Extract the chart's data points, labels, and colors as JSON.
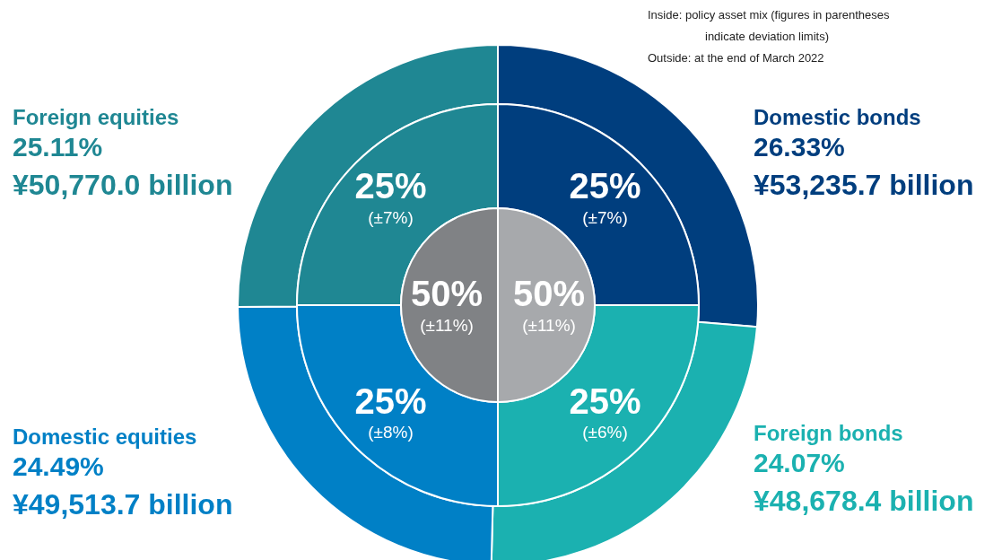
{
  "chart_data": [
    {
      "type": "donut",
      "annotations": [
        "Inside: policy asset mix (figures in parentheses\nindicate deviation limits)",
        "Outside: at the end of March 2022",
        {
          "text": "¥53,235.7 billion",
          "x": "Domestic bonds"
        },
        {
          "text": "¥48,678.4 billion",
          "x": "Foreign bonds"
        },
        {
          "text": "¥49,513.7 billion",
          "x": "Domestic equities"
        },
        {
          "text": "¥50,770.0 billion",
          "x": "Foreign equities"
        }
      ],
      "categories": [
        "Domestic bonds",
        "Foreign bonds",
        "Domestic equities",
        "Foreign equities"
      ],
      "series": [
        {
          "values": [
            26.33,
            24.07,
            24.49,
            25.11
          ],
          "colors": [
            "#003e7e",
            "#1bb1b0",
            "#0080c6",
            "#1f8793"
          ],
          "value_labels": [
            "26.33%",
            "24.07%",
            "24.49%",
            "25.11%"
          ]
        },
        {
          "values": [
            25,
            25,
            25,
            25
          ],
          "colors": [
            "#003e7e",
            "#1bb1b0",
            "#0080c6",
            "#1f8793"
          ],
          "value_labels": [
            "25%\n(±7%)",
            "25%\n(±6%)",
            "25%\n(±8%)",
            "25%\n(±7%)"
          ]
        }
      ]
    },
    {
      "type": "pie",
      "categories": [
        null,
        null
      ],
      "values": [
        50,
        50
      ],
      "colors": [
        "#a7a9ac",
        "#808285"
      ],
      "value_labels": [
        "50%\n(±11%)",
        "50%\n(±11%)"
      ]
    }
  ]
}
